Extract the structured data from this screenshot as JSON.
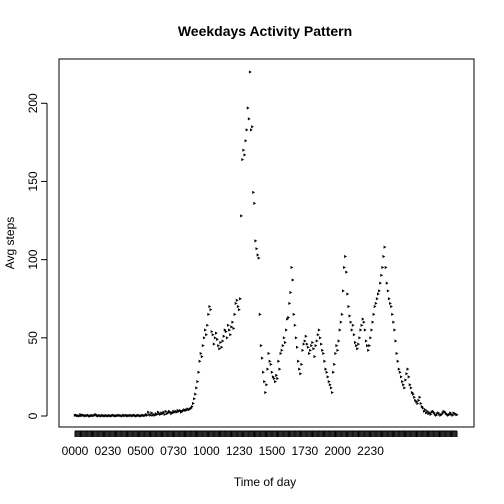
{
  "chart_data": {
    "type": "scatter",
    "title": "Weekdays Activity Pattern",
    "xlabel": "Time of day",
    "ylabel": "Avg steps",
    "ylim": [
      0,
      220
    ],
    "y_ticks": [
      0,
      50,
      100,
      150,
      200
    ],
    "x_tick_labels": [
      "0000",
      "0230",
      "0500",
      "0730",
      "1000",
      "1230",
      "1500",
      "1730",
      "2000",
      "2230"
    ],
    "series": [
      {
        "values": [
          0.5,
          0.5,
          0.2,
          0.2,
          0.0,
          1.0,
          0.2,
          0.5,
          0.5,
          0.0,
          0.3,
          0.2,
          0.5,
          0.0,
          0.0,
          0.3,
          0.3,
          0.2,
          0.5,
          1.0,
          0.2,
          0.0,
          0.3,
          0.2,
          0.0,
          0.5,
          0.2,
          0.0,
          0.3,
          0.2,
          0.0,
          0.3,
          0.2,
          0.0,
          0.3,
          0.5,
          0.2,
          0.0,
          0.3,
          0.2,
          0.5,
          0.3,
          0.2,
          0.0,
          0.5,
          0.3,
          0.2,
          0.5,
          0.0,
          0.3,
          0.2,
          0.5,
          0.0,
          0.3,
          0.5,
          0.2,
          0.0,
          0.3,
          0.5,
          0.2,
          0.0,
          0.3,
          0.5,
          0.2,
          0.3,
          1.0,
          0.5,
          2.5,
          1.0,
          0.5,
          2.0,
          0.5,
          1.0,
          0.5,
          1.5,
          1.0,
          2.5,
          1.5,
          1.0,
          2.0,
          1.5,
          2.5,
          1.0,
          3.0,
          1.5,
          2.0,
          3.0,
          2.5,
          1.5,
          2.0,
          3.0,
          2.5,
          3.0,
          2.5,
          3.5,
          3.0,
          3.5,
          2.5,
          3.0,
          3.5,
          4.0,
          3.5,
          4.0,
          4.5,
          4.0,
          4.5,
          5.0,
          6.0,
          8.0,
          11.0,
          14.0,
          18.0,
          22.0,
          28.0,
          35.0,
          40.0,
          38.0,
          45.0,
          50.0,
          55.0,
          52.0,
          58.0,
          65.0,
          70.0,
          68.0,
          54.0,
          52.0,
          46.0,
          50.0,
          53.0,
          49.0,
          45.0,
          43.0,
          47.0,
          44.0,
          48.0,
          51.0,
          55.0,
          54.0,
          50.0,
          58.0,
          55.0,
          52.0,
          57.0,
          60.0,
          56.0,
          65.0,
          72.0,
          74.0,
          70.0,
          68.0,
          75.0,
          128.0,
          164.0,
          170.0,
          167.0,
          176.0,
          183.0,
          197.0,
          190.0,
          220.0,
          183.0,
          185.0,
          143.0,
          136.0,
          112.0,
          107.0,
          103.0,
          101.0,
          65.0,
          45.0,
          37.0,
          28.0,
          22.0,
          15.0,
          20.0,
          30.0,
          40.0,
          35.0,
          33.0,
          28.0,
          25.0,
          24.0,
          22.0,
          26.0,
          24.0,
          35.0,
          30.0,
          40.0,
          42.0,
          45.0,
          50.0,
          47.0,
          55.0,
          62.0,
          63.0,
          72.0,
          79.0,
          95.0,
          87.0,
          65.0,
          58.0,
          50.0,
          44.0,
          35.0,
          30.0,
          27.0,
          33.0,
          42.0,
          46.0,
          48.0,
          51.0,
          46.0,
          44.0,
          40.0,
          42.0,
          45.0,
          47.0,
          43.0,
          38.0,
          45.0,
          48.0,
          52.0,
          55.0,
          50.0,
          46.0,
          42.0,
          40.0,
          35.0,
          30.0,
          28.0,
          25.0,
          22.0,
          20.0,
          18.0,
          15.0,
          28.0,
          33.0,
          40.0,
          45.0,
          42.0,
          48.0,
          55.0,
          60.0,
          65.0,
          80.0,
          95.0,
          102.0,
          92.0,
          78.0,
          70.0,
          64.0,
          60.0,
          55.0,
          58.0,
          52.0,
          47.0,
          45.0,
          43.0,
          46.0,
          50.0,
          55.0,
          58.0,
          62.0,
          60.0,
          55.0,
          48.0,
          45.0,
          42.0,
          45.0,
          50.0,
          55.0,
          60.0,
          65.0,
          70.0,
          72.0,
          75.0,
          78.0,
          80.0,
          85.0,
          90.0,
          95.0,
          102.0,
          108.0,
          95.0,
          85.0,
          80.0,
          75.0,
          72.0,
          70.0,
          65.0,
          60.0,
          55.0,
          48.0,
          40.0,
          35.0,
          30.0,
          28.0,
          25.0,
          22.0,
          20.0,
          18.0,
          23.0,
          27.0,
          30.0,
          25.0,
          20.0,
          18.0,
          15.0,
          14.0,
          12.0,
          10.0,
          9.0,
          8.0,
          10.0,
          12.0,
          8.0,
          6.0,
          5.0,
          3.0,
          4.0,
          2.0,
          3.0,
          1.5,
          2.0,
          1.0,
          2.5,
          3.0,
          2.0,
          1.0,
          0.5,
          1.5,
          2.0,
          1.0,
          0.5,
          1.0,
          2.0,
          3.0,
          2.5,
          1.5,
          1.0,
          0.5,
          1.0,
          2.0,
          1.0,
          0.5,
          2.0,
          1.5,
          1.0,
          0.8
        ]
      }
    ]
  }
}
